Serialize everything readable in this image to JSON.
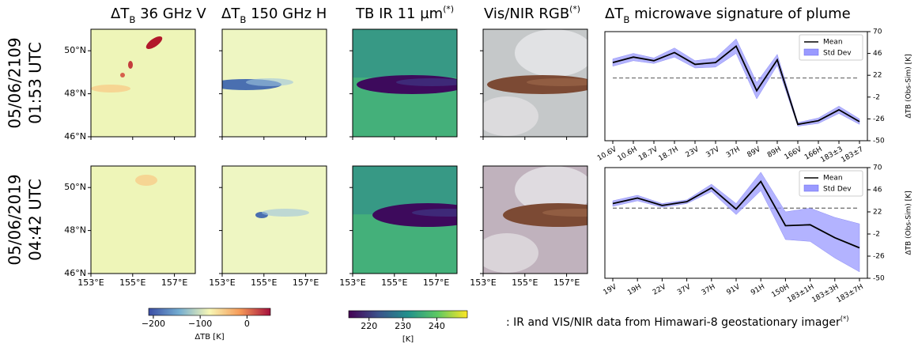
{
  "panel_titles": [
    {
      "prefix": "ΔT",
      "sub": "B",
      "text": " 36 GHz V"
    },
    {
      "prefix": "ΔT",
      "sub": "B",
      "text": " 150 GHz H"
    },
    {
      "prefix": "TB  IR 11 µm",
      "sup": "(*)"
    },
    {
      "prefix": "Vis/NIR RGB",
      "sup": "(*)"
    }
  ],
  "row_labels": [
    {
      "date": "05/06/2109",
      "time": "01:53 UTC"
    },
    {
      "date": "05/06/2019",
      "time": "04:42 UTC"
    }
  ],
  "map_axes": {
    "xlim": [
      153,
      158
    ],
    "ylim": [
      46,
      51
    ],
    "xticks": [
      {
        "value": 153,
        "label": "153°E"
      },
      {
        "value": 155,
        "label": "155°E"
      },
      {
        "value": 157,
        "label": "157°E"
      }
    ],
    "yticks": [
      {
        "value": 46,
        "label": "46°N"
      },
      {
        "value": 48,
        "label": "48°N"
      },
      {
        "value": 50,
        "label": "50°N"
      }
    ]
  },
  "colorbars": [
    {
      "label": "ΔTB [K]",
      "lim": [
        -210,
        50
      ],
      "ticks": [
        {
          "value": -200,
          "label": "−200"
        },
        {
          "value": -100,
          "label": "−100"
        },
        0
      ],
      "colormap": [
        "#3b4ea6",
        "#74add1",
        "#f7f7b5",
        "#f69a58",
        "#a50f3c"
      ]
    },
    {
      "label": "[K]",
      "lim": [
        214,
        249
      ],
      "ticks": [
        220,
        230,
        240
      ],
      "colormap": [
        "#440154",
        "#3b528b",
        "#21918c",
        "#5ec962",
        "#fde725"
      ]
    }
  ],
  "chart_title": {
    "prefix": "ΔT",
    "sub": "B",
    "text": " microwave signature of plume"
  },
  "footnote": {
    "mark": "(*)",
    "text": ": IR and VIS/NIR data from Himawari-8 geostationary imager"
  },
  "chart_data": [
    {
      "type": "line",
      "categories": [
        "10.6V",
        "10.6H",
        "18.7V",
        "18.7H",
        "23V",
        "37V",
        "37H",
        "89V",
        "89H",
        "166V",
        "166H",
        "183±3",
        "183±7"
      ],
      "series": [
        {
          "name": "Mean",
          "color": "#000000",
          "values": [
            36,
            42,
            38,
            47,
            34,
            36,
            54,
            5,
            39,
            -32,
            -28,
            -16,
            -29
          ]
        },
        {
          "name": "Std Dev",
          "color": "#9a9aff",
          "values": [
            4,
            4,
            3,
            5,
            4,
            5,
            8,
            9,
            6,
            2,
            3,
            4,
            3
          ]
        }
      ],
      "reference_value": 19,
      "reference_color": "#777777",
      "ylim": [
        -50,
        70
      ],
      "yticks": [
        70,
        46,
        22,
        -2,
        -26,
        -50
      ],
      "ylabel": "ΔTB (Obs-Sim) [K]",
      "legend": "upper right"
    },
    {
      "type": "line",
      "categories": [
        "19V",
        "19H",
        "22V",
        "37V",
        "37H",
        "91V",
        "91H",
        "150H",
        "183±1H",
        "183±3H",
        "183±7H"
      ],
      "series": [
        {
          "name": "Mean",
          "color": "#000000",
          "values": [
            31,
            37,
            29,
            33,
            48,
            25,
            55,
            7,
            8,
            -6,
            -17
          ]
        },
        {
          "name": "Std Dev",
          "color": "#9a9aff",
          "values": [
            3,
            3,
            2,
            2,
            4,
            6,
            10,
            15,
            18,
            22,
            26
          ]
        }
      ],
      "reference_value": 26,
      "reference_color": "#777777",
      "ylim": [
        -50,
        70
      ],
      "yticks": [
        70,
        46,
        22,
        -2,
        -26,
        -50
      ],
      "ylabel": "ΔTB (Obs-Sim) [K]",
      "legend": "upper right"
    }
  ]
}
